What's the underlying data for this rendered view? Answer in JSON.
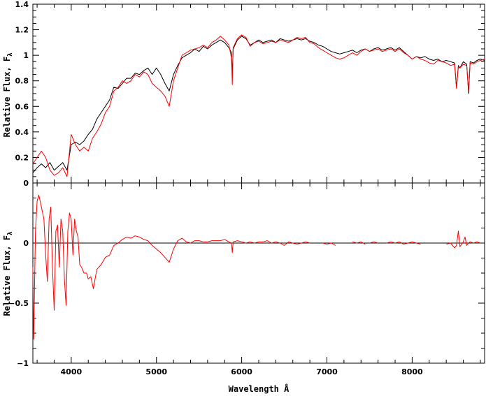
{
  "chart_data": [
    {
      "type": "line",
      "panel": "top",
      "ylabel": "Relative Flux, F",
      "ylabel_subscript": "λ",
      "xlim": [
        3550,
        8850
      ],
      "ylim": [
        0,
        1.4
      ],
      "x_ticks": [
        4000,
        5000,
        6000,
        7000,
        8000
      ],
      "y_ticks": [
        {
          "value": 0,
          "label": "0"
        },
        {
          "value": 0.2,
          "label": "0.2"
        },
        {
          "value": 0.4,
          "label": "0.4"
        },
        {
          "value": 0.6,
          "label": "0.6"
        },
        {
          "value": 0.8,
          "label": "0.8"
        },
        {
          "value": 1.0,
          "label": "1"
        },
        {
          "value": 1.2,
          "label": "1.2"
        },
        {
          "value": 1.4,
          "label": "1.4"
        }
      ],
      "grid": false,
      "series": [
        {
          "color": "#000000",
          "x": [
            3550,
            3600,
            3650,
            3700,
            3750,
            3800,
            3850,
            3900,
            3950,
            4000,
            4050,
            4100,
            4150,
            4200,
            4250,
            4300,
            4350,
            4400,
            4450,
            4500,
            4550,
            4600,
            4650,
            4700,
            4750,
            4800,
            4850,
            4900,
            4950,
            5000,
            5050,
            5100,
            5150,
            5200,
            5250,
            5300,
            5350,
            5400,
            5450,
            5500,
            5550,
            5600,
            5650,
            5700,
            5750,
            5800,
            5850,
            5880,
            5890,
            5900,
            5950,
            6000,
            6050,
            6100,
            6150,
            6200,
            6250,
            6300,
            6350,
            6400,
            6450,
            6500,
            6550,
            6600,
            6650,
            6700,
            6750,
            6800,
            6850,
            6900,
            6950,
            7000,
            7050,
            7100,
            7150,
            7200,
            7250,
            7300,
            7350,
            7400,
            7450,
            7500,
            7550,
            7600,
            7650,
            7700,
            7750,
            7800,
            7850,
            7900,
            7950,
            8000,
            8050,
            8100,
            8150,
            8200,
            8250,
            8300,
            8350,
            8400,
            8450,
            8498,
            8520,
            8542,
            8560,
            8600,
            8640,
            8662,
            8680,
            8720,
            8760,
            8800,
            8850
          ],
          "y": [
            0.08,
            0.12,
            0.15,
            0.12,
            0.16,
            0.1,
            0.13,
            0.16,
            0.1,
            0.3,
            0.32,
            0.3,
            0.33,
            0.38,
            0.42,
            0.5,
            0.55,
            0.6,
            0.65,
            0.75,
            0.74,
            0.78,
            0.82,
            0.82,
            0.86,
            0.85,
            0.88,
            0.9,
            0.85,
            0.9,
            0.85,
            0.78,
            0.72,
            0.85,
            0.92,
            0.98,
            1.0,
            1.02,
            1.05,
            1.03,
            1.07,
            1.05,
            1.08,
            1.1,
            1.12,
            1.1,
            1.06,
            1.02,
            0.85,
            1.05,
            1.12,
            1.15,
            1.13,
            1.08,
            1.1,
            1.12,
            1.1,
            1.11,
            1.12,
            1.1,
            1.13,
            1.12,
            1.11,
            1.12,
            1.13,
            1.12,
            1.13,
            1.11,
            1.1,
            1.08,
            1.07,
            1.05,
            1.03,
            1.02,
            1.01,
            1.02,
            1.03,
            1.04,
            1.02,
            1.04,
            1.05,
            1.03,
            1.05,
            1.06,
            1.04,
            1.05,
            1.06,
            1.04,
            1.06,
            1.03,
            1.0,
            0.97,
            0.99,
            0.98,
            0.99,
            0.97,
            0.96,
            0.97,
            0.95,
            0.96,
            0.95,
            0.94,
            0.75,
            0.92,
            0.9,
            0.95,
            0.93,
            0.7,
            0.95,
            0.94,
            0.96,
            0.97,
            0.96
          ]
        },
        {
          "color": "#ff0000",
          "x": [
            3550,
            3600,
            3650,
            3700,
            3750,
            3800,
            3850,
            3900,
            3950,
            4000,
            4050,
            4100,
            4150,
            4200,
            4250,
            4300,
            4350,
            4400,
            4450,
            4500,
            4550,
            4600,
            4650,
            4700,
            4750,
            4800,
            4850,
            4900,
            4950,
            5000,
            5050,
            5100,
            5150,
            5200,
            5250,
            5300,
            5350,
            5400,
            5450,
            5500,
            5550,
            5600,
            5650,
            5700,
            5750,
            5800,
            5850,
            5880,
            5890,
            5900,
            5950,
            6000,
            6050,
            6100,
            6150,
            6200,
            6250,
            6300,
            6350,
            6400,
            6450,
            6500,
            6550,
            6600,
            6650,
            6700,
            6750,
            6800,
            6850,
            6900,
            6950,
            7000,
            7050,
            7100,
            7150,
            7200,
            7250,
            7300,
            7350,
            7400,
            7450,
            7500,
            7550,
            7600,
            7650,
            7700,
            7750,
            7800,
            7850,
            7900,
            7950,
            8000,
            8050,
            8100,
            8150,
            8200,
            8250,
            8300,
            8350,
            8400,
            8450,
            8498,
            8520,
            8542,
            8560,
            8600,
            8640,
            8662,
            8680,
            8720,
            8760,
            8800,
            8850
          ],
          "y": [
            0.15,
            0.2,
            0.25,
            0.2,
            0.1,
            0.06,
            0.08,
            0.12,
            0.05,
            0.38,
            0.3,
            0.25,
            0.28,
            0.25,
            0.35,
            0.4,
            0.46,
            0.55,
            0.6,
            0.72,
            0.75,
            0.8,
            0.78,
            0.8,
            0.85,
            0.83,
            0.87,
            0.85,
            0.78,
            0.75,
            0.72,
            0.68,
            0.6,
            0.8,
            0.9,
            1.0,
            1.02,
            1.04,
            1.05,
            1.06,
            1.08,
            1.06,
            1.1,
            1.12,
            1.15,
            1.12,
            1.08,
            0.98,
            0.77,
            1.06,
            1.13,
            1.16,
            1.14,
            1.07,
            1.1,
            1.11,
            1.09,
            1.1,
            1.11,
            1.1,
            1.12,
            1.11,
            1.1,
            1.12,
            1.14,
            1.13,
            1.14,
            1.1,
            1.09,
            1.06,
            1.04,
            1.02,
            1.0,
            0.98,
            0.97,
            0.98,
            1.0,
            1.02,
            1.0,
            1.03,
            1.05,
            1.03,
            1.04,
            1.05,
            1.03,
            1.04,
            1.05,
            1.03,
            1.05,
            1.02,
            1.0,
            0.97,
            0.99,
            0.97,
            0.96,
            0.94,
            0.93,
            0.96,
            0.95,
            0.94,
            0.92,
            0.93,
            0.74,
            0.91,
            0.9,
            0.93,
            0.92,
            0.72,
            0.94,
            0.93,
            0.95,
            0.96,
            0.97
          ]
        }
      ]
    },
    {
      "type": "line",
      "panel": "bottom",
      "xlabel": "Wavelength Å",
      "ylabel": "Relative Flux, F",
      "ylabel_subscript": "λ",
      "xlim": [
        3550,
        8850
      ],
      "ylim": [
        -1,
        0.5
      ],
      "x_ticks": [
        {
          "value": 4000,
          "label": "4000"
        },
        {
          "value": 5000,
          "label": "5000"
        },
        {
          "value": 6000,
          "label": "6000"
        },
        {
          "value": 7000,
          "label": "7000"
        },
        {
          "value": 8000,
          "label": "8000"
        }
      ],
      "y_ticks": [
        {
          "value": -1,
          "label": "−1"
        },
        {
          "value": -0.5,
          "label": "−0.5"
        },
        {
          "value": 0,
          "label": "0"
        }
      ],
      "zero_line": true,
      "grid": false,
      "series": [
        {
          "color": "#ff0000",
          "segments": [
            {
              "x": [
                3550,
                3560,
                3580,
                3600,
                3620,
                3650,
                3680,
                3700,
                3720,
                3740,
                3760,
                3780,
                3800,
                3820,
                3840,
                3860,
                3880,
                3900,
                3920,
                3940,
                3960,
                3980,
                4000,
                4020,
                4040,
                4060,
                4080,
                4100,
                4120,
                4150,
                4180,
                4200,
                4230,
                4260,
                4300,
                4350,
                4400,
                4450,
                4500,
                4550,
                4600,
                4650,
                4700,
                4750,
                4800,
                4850,
                4900,
                4950,
                5000,
                5050,
                5100,
                5150,
                5200,
                5250,
                5300,
                5350,
                5400,
                5450,
                5500,
                5550,
                5600,
                5650,
                5700,
                5750,
                5800,
                5850,
                5880,
                5890,
                5900,
                5950,
                6000,
                6050,
                6100,
                6150,
                6200,
                6250,
                6300,
                6350,
                6400,
                6450,
                6500,
                6550,
                6600,
                6650,
                6700,
                6750,
                6800
              ],
              "y": [
                -0.2,
                -0.8,
                0.1,
                0.35,
                0.4,
                0.3,
                0.2,
                -0.1,
                -0.32,
                0.2,
                0.3,
                -0.2,
                -0.56,
                0.1,
                0.15,
                -0.2,
                0.2,
                0.1,
                -0.3,
                -0.52,
                0.1,
                0.25,
                0.2,
                -0.1,
                0.2,
                0.1,
                0.05,
                -0.18,
                -0.2,
                -0.25,
                -0.25,
                -0.3,
                -0.28,
                -0.38,
                -0.22,
                -0.18,
                -0.12,
                -0.1,
                -0.02,
                0.0,
                0.03,
                0.05,
                0.04,
                0.06,
                0.05,
                0.03,
                0.02,
                -0.02,
                -0.05,
                -0.08,
                -0.12,
                -0.16,
                -0.05,
                0.02,
                0.04,
                0.01,
                0.0,
                0.02,
                0.02,
                0.01,
                0.01,
                0.02,
                0.02,
                0.02,
                0.03,
                0.01,
                0.0,
                -0.08,
                0.01,
                0.02,
                0.01,
                0.0,
                0.01,
                0.0,
                0.01,
                0.01,
                0.02,
                0.0,
                0.01,
                0.0,
                -0.02,
                0.01,
                0.0,
                -0.01,
                0.0,
                0.01,
                0.0
              ]
            },
            {
              "x": [
                6950,
                7000,
                7050,
                7100
              ],
              "y": [
                0.0,
                -0.01,
                0.0,
                -0.02
              ]
            },
            {
              "x": [
                7300,
                7350,
                7400,
                7450
              ],
              "y": [
                0.01,
                0.0,
                0.01,
                -0.01
              ]
            },
            {
              "x": [
                7500,
                7550,
                7600
              ],
              "y": [
                0.0,
                0.01,
                0.0
              ]
            },
            {
              "x": [
                7700,
                7750,
                7800,
                7850,
                7900,
                7950,
                8000,
                8050,
                8100
              ],
              "y": [
                0.0,
                0.01,
                0.0,
                0.01,
                -0.01,
                0.0,
                0.01,
                0.0,
                -0.01
              ]
            },
            {
              "x": [
                8400,
                8450,
                8498,
                8520,
                8542,
                8560,
                8600,
                8620,
                8640,
                8662,
                8680,
                8720,
                8760,
                8800
              ],
              "y": [
                -0.01,
                0.0,
                -0.04,
                -0.02,
                0.1,
                -0.03,
                0.01,
                0.05,
                -0.02,
                0.0,
                0.01,
                0.0,
                0.01,
                0.0
              ]
            }
          ]
        }
      ]
    }
  ]
}
